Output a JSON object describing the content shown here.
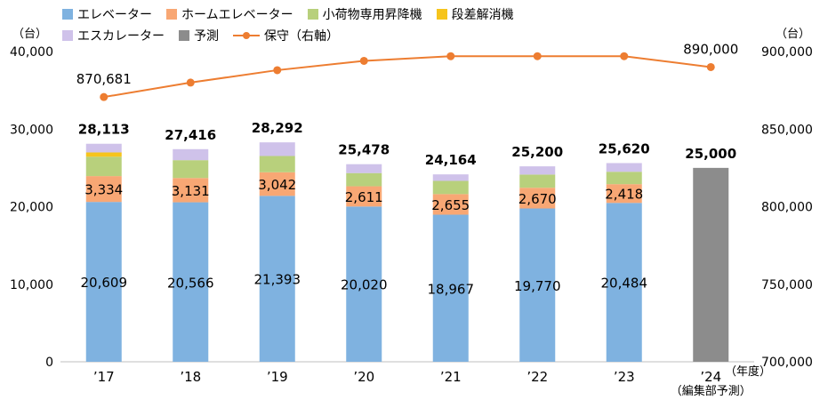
{
  "legend": [
    {
      "name": "エレベーター",
      "color": "#7fb2e0",
      "kind": "box"
    },
    {
      "name": "ホームエレベーター",
      "color": "#f8a774",
      "kind": "box"
    },
    {
      "name": "小荷物専用昇降機",
      "color": "#b8d07c",
      "kind": "box"
    },
    {
      "name": "段差解消機",
      "color": "#f6c41c",
      "kind": "box"
    },
    {
      "name": "エスカレーター",
      "color": "#cfc2ea",
      "kind": "box"
    },
    {
      "name": "予測",
      "color": "#8c8c8c",
      "kind": "box"
    },
    {
      "name": "保守（右軸）",
      "color": "#ed7d31",
      "kind": "line"
    }
  ],
  "chart_data": {
    "type": "bar",
    "categories": [
      "’17",
      "’18",
      "’19",
      "’20",
      "’21",
      "’22",
      "’23",
      "’24"
    ],
    "category_note": "（編集部予測）",
    "x_unit": "（年度）",
    "y_unit": "（台）",
    "y2_unit": "（台）",
    "ylim": [
      0,
      40000
    ],
    "yticks": [
      "0",
      "10,000",
      "20,000",
      "30,000",
      "40,000"
    ],
    "y2lim": [
      700000,
      900000
    ],
    "y2ticks": [
      "700,000",
      "750,000",
      "800,000",
      "850,000",
      "900,000"
    ],
    "series": [
      {
        "name": "エレベーター",
        "color": "#7fb2e0",
        "values": [
          20609,
          20566,
          21393,
          20020,
          18967,
          19770,
          20484,
          null
        ],
        "labels": [
          "20,609",
          "20,566",
          "21,393",
          "20,020",
          "18,967",
          "19,770",
          "20,484",
          ""
        ]
      },
      {
        "name": "ホームエレベーター",
        "color": "#f8a774",
        "values": [
          3334,
          3131,
          3042,
          2611,
          2655,
          2670,
          2418,
          null
        ],
        "labels": [
          "3,334",
          "3,131",
          "3,042",
          "2,611",
          "2,655",
          "2,670",
          "2,418",
          ""
        ]
      },
      {
        "name": "小荷物専用昇降機",
        "color": "#b8d07c",
        "values": [
          2500,
          2300,
          2100,
          1700,
          1700,
          1700,
          1600,
          null
        ]
      },
      {
        "name": "段差解消機",
        "color": "#f6c41c",
        "values": [
          550,
          0,
          0,
          0,
          0,
          0,
          0,
          null
        ]
      },
      {
        "name": "エスカレーター",
        "color": "#cfc2ea",
        "values": [
          1120,
          1419,
          1757,
          1147,
          842,
          1060,
          1118,
          null
        ]
      },
      {
        "name": "予測",
        "color": "#8c8c8c",
        "values": [
          null,
          null,
          null,
          null,
          null,
          null,
          null,
          25000
        ]
      }
    ],
    "totals": [
      "28,113",
      "27,416",
      "28,292",
      "25,478",
      "24,164",
      "25,200",
      "25,620",
      "25,000"
    ],
    "line": {
      "name": "保守（右軸）",
      "color": "#ed7d31",
      "axis": "right",
      "values": [
        870681,
        880000,
        888000,
        894000,
        897000,
        897000,
        897000,
        890000
      ],
      "labels": [
        "870,681",
        "",
        "",
        "",
        "",
        "",
        "",
        "890,000"
      ]
    }
  }
}
